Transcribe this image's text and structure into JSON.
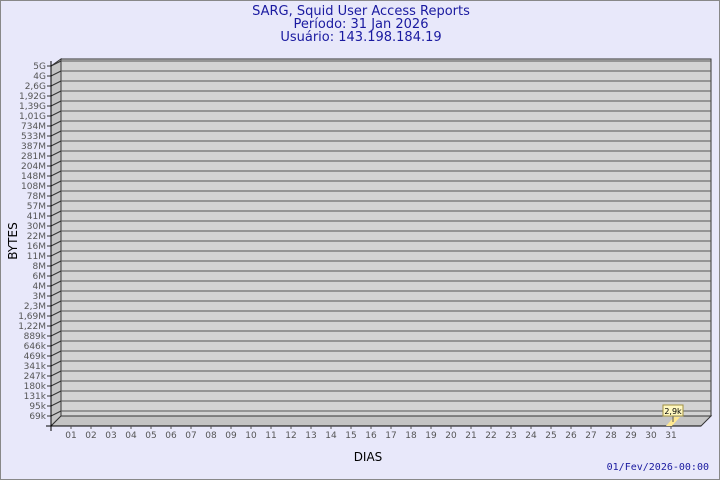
{
  "header": {
    "title": "SARG, Squid User Access Reports",
    "period": "Período: 31 Jan 2026",
    "user": "Usuário: 143.198.184.19"
  },
  "footer": {
    "timestamp": "01/Fev/2026-00:00"
  },
  "colors": {
    "title": "#1a1aa0",
    "plot": "#d3d3d3",
    "bar": "#ffe890",
    "background": "#e8e8fa"
  },
  "chart_data": {
    "type": "bar",
    "xlabel": "DIAS",
    "ylabel": "BYTES",
    "y_scale": "log",
    "y_ticks": [
      "5G",
      "4G",
      "2,6G",
      "1,92G",
      "1,39G",
      "1,01G",
      "734M",
      "533M",
      "387M",
      "281M",
      "204M",
      "148M",
      "108M",
      "78M",
      "57M",
      "41M",
      "30M",
      "22M",
      "16M",
      "11M",
      "8M",
      "6M",
      "4M",
      "3M",
      "2,3M",
      "1,69M",
      "1,22M",
      "889k",
      "646k",
      "469k",
      "341k",
      "247k",
      "180k",
      "131k",
      "95k",
      "69k"
    ],
    "categories": [
      "01",
      "02",
      "03",
      "04",
      "05",
      "06",
      "07",
      "08",
      "09",
      "10",
      "11",
      "12",
      "13",
      "14",
      "15",
      "16",
      "17",
      "18",
      "19",
      "20",
      "21",
      "22",
      "23",
      "24",
      "25",
      "26",
      "27",
      "28",
      "29",
      "30",
      "31"
    ],
    "values": [
      {
        "day": "31",
        "bytes": 2900,
        "label": "2,9k"
      }
    ],
    "grid": true
  }
}
